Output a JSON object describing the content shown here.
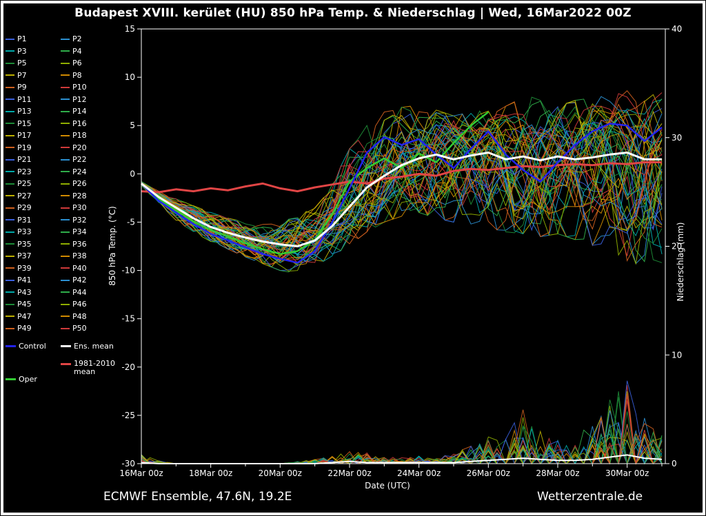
{
  "title": "Budapest XVIII. kerület  (HU)  850 hPa Temp. & Niederschlag | Wed, 16Mar2022 00Z",
  "footer": {
    "model": "ECMWF Ensemble, 47.6N, 19.2E",
    "site": "Wetterzentrale.de"
  },
  "colors": {
    "background": "#000000",
    "frame": "#ffffff",
    "text": "#ffffff",
    "control": "#2222ee",
    "ens_mean": "#ffffff",
    "climate_mean": "#e04545",
    "oper": "#33cc33"
  },
  "legend": {
    "members": [
      {
        "label": "P1",
        "color": "#3a5fdc"
      },
      {
        "label": "P2",
        "color": "#2b8fd0"
      },
      {
        "label": "P3",
        "color": "#00a9a9"
      },
      {
        "label": "P4",
        "color": "#2fae4a"
      },
      {
        "label": "P5",
        "color": "#1d8a37"
      },
      {
        "label": "P6",
        "color": "#8fae00"
      },
      {
        "label": "P7",
        "color": "#bdb000"
      },
      {
        "label": "P8",
        "color": "#d08a00"
      },
      {
        "label": "P9",
        "color": "#cf5f1e"
      },
      {
        "label": "P10",
        "color": "#d03a3a"
      },
      {
        "label": "P11",
        "color": "#3a5fdc"
      },
      {
        "label": "P12",
        "color": "#2b8fd0"
      },
      {
        "label": "P13",
        "color": "#00a9a9"
      },
      {
        "label": "P14",
        "color": "#2fae4a"
      },
      {
        "label": "P15",
        "color": "#1d8a37"
      },
      {
        "label": "P16",
        "color": "#8fae00"
      },
      {
        "label": "P17",
        "color": "#bdb000"
      },
      {
        "label": "P18",
        "color": "#d08a00"
      },
      {
        "label": "P19",
        "color": "#cf5f1e"
      },
      {
        "label": "P20",
        "color": "#d03a3a"
      },
      {
        "label": "P21",
        "color": "#3a5fdc"
      },
      {
        "label": "P22",
        "color": "#2b8fd0"
      },
      {
        "label": "P23",
        "color": "#00a9a9"
      },
      {
        "label": "P24",
        "color": "#2fae4a"
      },
      {
        "label": "P25",
        "color": "#1d8a37"
      },
      {
        "label": "P26",
        "color": "#8fae00"
      },
      {
        "label": "P27",
        "color": "#bdb000"
      },
      {
        "label": "P28",
        "color": "#d08a00"
      },
      {
        "label": "P29",
        "color": "#cf5f1e"
      },
      {
        "label": "P30",
        "color": "#d03a3a"
      },
      {
        "label": "P31",
        "color": "#3a5fdc"
      },
      {
        "label": "P32",
        "color": "#2b8fd0"
      },
      {
        "label": "P33",
        "color": "#00a9a9"
      },
      {
        "label": "P34",
        "color": "#2fae4a"
      },
      {
        "label": "P35",
        "color": "#1d8a37"
      },
      {
        "label": "P36",
        "color": "#8fae00"
      },
      {
        "label": "P37",
        "color": "#bdb000"
      },
      {
        "label": "P38",
        "color": "#d08a00"
      },
      {
        "label": "P39",
        "color": "#cf5f1e"
      },
      {
        "label": "P40",
        "color": "#d03a3a"
      },
      {
        "label": "P41",
        "color": "#3a5fdc"
      },
      {
        "label": "P42",
        "color": "#2b8fd0"
      },
      {
        "label": "P43",
        "color": "#00a9a9"
      },
      {
        "label": "P44",
        "color": "#2fae4a"
      },
      {
        "label": "P45",
        "color": "#1d8a37"
      },
      {
        "label": "P46",
        "color": "#8fae00"
      },
      {
        "label": "P47",
        "color": "#bdb000"
      },
      {
        "label": "P48",
        "color": "#d08a00"
      },
      {
        "label": "P49",
        "color": "#cf5f1e"
      },
      {
        "label": "P50",
        "color": "#d03a3a"
      }
    ],
    "control_label": "Control",
    "ens_mean_label": "Ens. mean",
    "climate_label_line1": "1981-2010",
    "climate_label_line2": "mean",
    "oper_label": "Oper"
  },
  "axes": {
    "x_caption": "Date (UTC)",
    "y_left_label": "850 hPa Temp. (°C)",
    "y_right_label": "Niederschlag (mm)",
    "x_ticks": [
      "16Mar 00z",
      "18Mar 00z",
      "20Mar 00z",
      "22Mar 00z",
      "24Mar 00z",
      "26Mar 00z",
      "28Mar 00z",
      "30Mar 00z"
    ],
    "y_left_ticks": [
      "15",
      "10",
      "5",
      "0",
      "-5",
      "-10",
      "-15",
      "-20",
      "-25",
      "-30"
    ],
    "y_right_ticks": [
      "40",
      "30",
      "20",
      "10",
      "0"
    ],
    "y_left_range": [
      -30,
      15
    ],
    "y_right_range": [
      0,
      40
    ],
    "x_range_days": [
      0,
      15.1
    ]
  },
  "chart_data": {
    "type": "line",
    "title": "Budapest XVIII. kerület (HU) 850 hPa Temp. & Niederschlag, run Wed 16Mar2022 00Z",
    "x_unit": "days since 16Mar2022 00Z",
    "x_days": [
      0,
      0.5,
      1,
      1.5,
      2,
      2.5,
      3,
      3.5,
      4,
      4.5,
      5,
      5.5,
      6,
      6.5,
      7,
      7.5,
      8,
      8.5,
      9,
      9.5,
      10,
      10.5,
      11,
      11.5,
      12,
      12.5,
      13,
      13.5,
      14,
      14.5,
      15
    ],
    "temp": {
      "ylabel": "850 hPa Temp. (°C)",
      "ylim": [
        -30,
        15
      ],
      "ens_mean": [
        -1.0,
        -2.4,
        -3.5,
        -4.6,
        -5.5,
        -6.1,
        -6.6,
        -7.0,
        -7.3,
        -7.5,
        -6.9,
        -5.4,
        -3.4,
        -1.4,
        -0.2,
        0.9,
        1.6,
        2.0,
        1.5,
        1.9,
        2.2,
        1.5,
        1.8,
        1.4,
        1.8,
        1.5,
        1.7,
        2.0,
        2.2,
        1.5,
        1.5
      ],
      "control": [
        -1.0,
        -2.8,
        -4.0,
        -5.2,
        -6.2,
        -6.9,
        -7.6,
        -8.3,
        -8.8,
        -9.2,
        -8.0,
        -5.0,
        -1.5,
        2.2,
        3.8,
        3.0,
        3.6,
        2.0,
        0.6,
        2.6,
        4.4,
        2.0,
        0.4,
        -0.8,
        1.2,
        3.0,
        4.4,
        5.2,
        5.0,
        3.4,
        4.8
      ],
      "climate_mean": [
        -1.8,
        -1.9,
        -1.6,
        -1.8,
        -1.5,
        -1.7,
        -1.3,
        -1.0,
        -1.5,
        -1.8,
        -1.4,
        -1.1,
        -0.8,
        -1.0,
        -0.5,
        -0.3,
        0.0,
        -0.2,
        0.3,
        0.5,
        0.4,
        0.6,
        0.8,
        0.7,
        0.9,
        1.0,
        0.9,
        1.1,
        1.0,
        1.2,
        1.2
      ],
      "oper": [
        -1.0,
        -2.6,
        -3.8,
        -4.9,
        -5.8,
        -6.5,
        -7.2,
        -7.8,
        -8.3,
        -8.0,
        -6.8,
        -4.2,
        -0.8,
        0.6,
        1.6,
        0.6,
        2.1,
        1.2,
        3.2,
        5.0,
        6.4
      ],
      "envelope_min": [
        -1.2,
        -3.2,
        -4.8,
        -6.0,
        -7.0,
        -7.8,
        -8.6,
        -9.3,
        -10.0,
        -10.3,
        -9.6,
        -8.5,
        -7.4,
        -6.0,
        -5.0,
        -4.4,
        -4.0,
        -4.6,
        -5.0,
        -5.2,
        -5.6,
        -6.0,
        -6.2,
        -6.5,
        -6.2,
        -6.8,
        -7.4,
        -8.0,
        -9.0,
        -9.6,
        -9.2
      ],
      "envelope_max": [
        -0.8,
        -1.8,
        -2.6,
        -3.3,
        -4.0,
        -4.6,
        -5.0,
        -5.2,
        -5.0,
        -4.4,
        -3.4,
        -1.0,
        2.6,
        5.0,
        6.4,
        7.0,
        7.0,
        6.6,
        6.0,
        6.4,
        6.6,
        7.0,
        8.4,
        7.6,
        7.0,
        7.6,
        8.0,
        8.0,
        8.6,
        8.0,
        8.4
      ],
      "members": 50
    },
    "precip": {
      "ylabel": "Niederschlag (mm)",
      "ylim": [
        0,
        40
      ],
      "ens_mean": [
        0.1,
        0,
        0,
        0,
        0,
        0,
        0,
        0,
        0,
        0,
        0,
        0.1,
        0.2,
        0.1,
        0.1,
        0.1,
        0.1,
        0.1,
        0.1,
        0.2,
        0.3,
        0.4,
        0.5,
        0.4,
        0.3,
        0.3,
        0.4,
        0.6,
        0.8,
        0.5,
        0.4
      ],
      "max_envelope": [
        0.9,
        0.3,
        0,
        0,
        0,
        0,
        0,
        0,
        0,
        0.2,
        0.4,
        0.8,
        1.3,
        1.0,
        0.8,
        0.6,
        0.8,
        0.6,
        1.0,
        1.6,
        2.6,
        3.2,
        5.0,
        3.0,
        2.2,
        2.6,
        3.6,
        6.0,
        8.3,
        4.2,
        2.6
      ]
    }
  }
}
